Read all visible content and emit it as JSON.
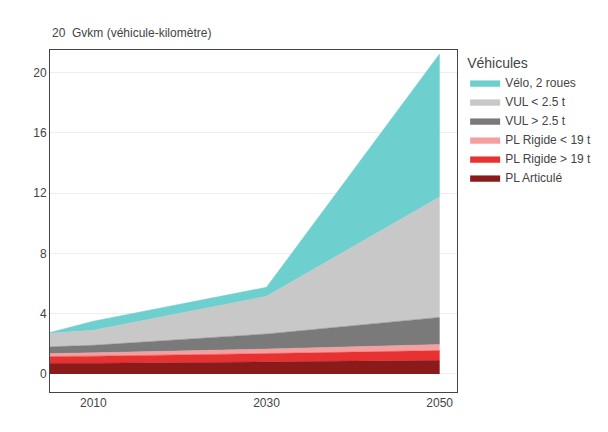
{
  "chart_data": {
    "type": "area",
    "stacked": true,
    "x": [
      2005,
      2010,
      2030,
      2050
    ],
    "series": [
      {
        "name": "PL Articulé",
        "color": "#8B1A1A",
        "values": [
          0.7,
          0.7,
          0.8,
          0.9
        ]
      },
      {
        "name": "PL Rigide > 19 t",
        "color": "#E83232",
        "values": [
          0.45,
          0.48,
          0.55,
          0.65
        ]
      },
      {
        "name": "PL Rigide < 19 t",
        "color": "#F4A0A0",
        "values": [
          0.2,
          0.22,
          0.3,
          0.4
        ]
      },
      {
        "name": "VUL > 2.5 t",
        "color": "#7A7A7A",
        "values": [
          0.45,
          0.5,
          1.0,
          1.8
        ]
      },
      {
        "name": "VUL < 2.5 t",
        "color": "#C8C8C8",
        "values": [
          0.9,
          1.0,
          2.5,
          8.0
        ]
      },
      {
        "name": "Vélo, 2 roues",
        "color": "#6ECFCF",
        "values": [
          0.05,
          0.6,
          0.6,
          9.5
        ]
      }
    ],
    "xlim": [
      2005,
      2052
    ],
    "xticks": [
      2010,
      2030,
      2050
    ],
    "ylim": [
      -1.2,
      21.5
    ],
    "yticks": [
      0,
      4,
      8,
      12,
      16,
      20
    ],
    "ylabel": "20  Gvkm (véhicule-kilomètre)",
    "legend_title": "Véhicules",
    "legend": "right",
    "grid": true
  }
}
